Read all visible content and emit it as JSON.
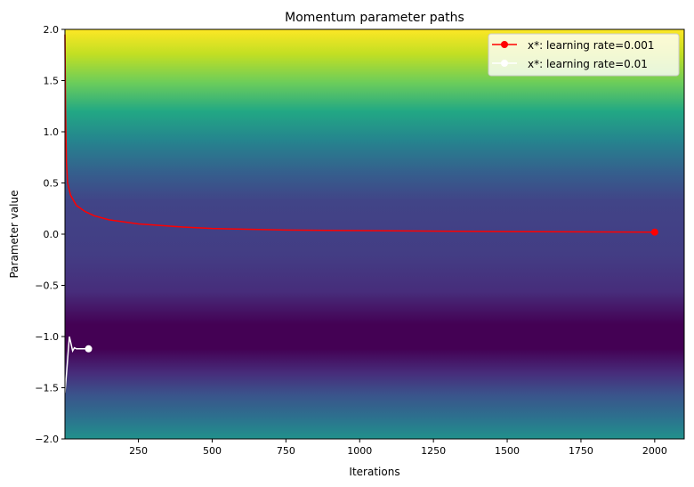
{
  "chart_data": {
    "type": "line",
    "title": "Momentum parameter paths",
    "xlabel": "Iterations",
    "ylabel": "Parameter value",
    "xlim": [
      1,
      2100
    ],
    "ylim": [
      -2.0,
      2.0
    ],
    "xticks": [
      250,
      500,
      750,
      1000,
      1250,
      1500,
      1750,
      2000
    ],
    "xtick_labels": [
      "250",
      "500",
      "750",
      "1000",
      "1250",
      "1500",
      "1750",
      "2000"
    ],
    "yticks": [
      -2.0,
      -1.5,
      -1.0,
      -0.5,
      0.0,
      0.5,
      1.0,
      1.5,
      2.0
    ],
    "ytick_labels": [
      "−2.0",
      "−1.5",
      "−1.0",
      "−0.5",
      "0.0",
      "0.5",
      "1.0",
      "1.5",
      "2.0"
    ],
    "grid": false,
    "legend_position": "top-right",
    "background": "viridis heatmap varying with parameter value (minimum near -1.1)",
    "series": [
      {
        "name": "x*: learning rate=0.001",
        "color": "#ff0000",
        "x": [
          1,
          3,
          6,
          10,
          20,
          40,
          70,
          100,
          150,
          250,
          400,
          500,
          750,
          1000,
          1500,
          2000
        ],
        "y": [
          1.95,
          1.2,
          0.7,
          0.5,
          0.38,
          0.28,
          0.22,
          0.18,
          0.14,
          0.1,
          0.07,
          0.055,
          0.04,
          0.035,
          0.025,
          0.02
        ]
      },
      {
        "name": "x*: learning rate=0.01",
        "color": "#ffffff",
        "x": [
          1,
          8,
          16,
          20,
          27,
          33,
          40,
          81
        ],
        "y": [
          -1.55,
          -1.3,
          -1.0,
          -1.05,
          -1.14,
          -1.11,
          -1.12,
          -1.12
        ]
      }
    ]
  }
}
